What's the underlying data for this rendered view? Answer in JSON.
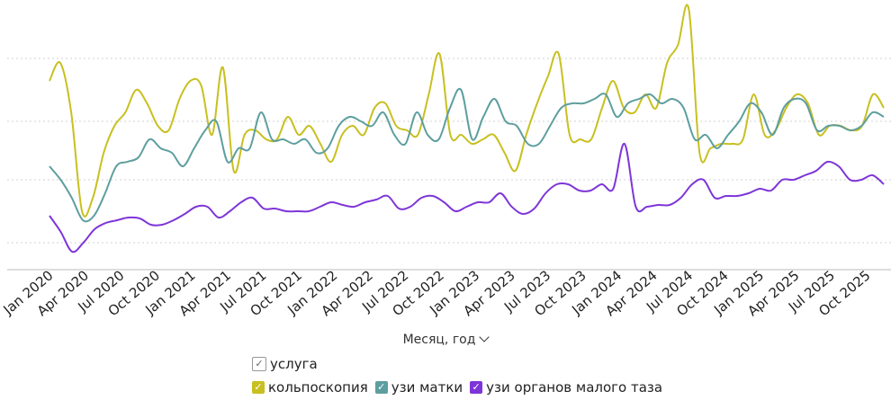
{
  "chart_data": {
    "type": "line",
    "title": "",
    "xlabel": "Месяц, год",
    "ylabel": "",
    "grid": true,
    "ylim": [
      0,
      300
    ],
    "ygrid": [
      30,
      100,
      165,
      235
    ],
    "x_tick_labels": [
      "Jan 2020",
      "Apr 2020",
      "Jul 2020",
      "Oct 2020",
      "Jan 2021",
      "Apr 2021",
      "Jul 2021",
      "Oct 2021",
      "Jan 2022",
      "Apr 2022",
      "Jul 2022",
      "Oct 2022",
      "Jan 2023",
      "Apr 2023",
      "Jul 2023",
      "Oct 2023",
      "Jan 2024",
      "Apr 2024",
      "Jul 2024",
      "Oct 2024",
      "Jan 2025",
      "Apr 2025",
      "Jul 2025",
      "Oct 2025"
    ],
    "series": [
      {
        "name": "кольпоскопия",
        "color": "#c8c020",
        "values": [
          210,
          230,
          175,
          65,
          80,
          130,
          160,
          175,
          200,
          185,
          160,
          155,
          190,
          210,
          205,
          150,
          225,
          110,
          150,
          155,
          145,
          145,
          170,
          150,
          160,
          140,
          120,
          150,
          160,
          150,
          180,
          185,
          160,
          155,
          150,
          195,
          240,
          150,
          150,
          140,
          145,
          150,
          130,
          110,
          150,
          185,
          215,
          240,
          150,
          145,
          145,
          180,
          210,
          180,
          175,
          195,
          180,
          230,
          250,
          290,
          130,
          135,
          140,
          140,
          145,
          195,
          150,
          155,
          180,
          195,
          185,
          150,
          160,
          160,
          155,
          160,
          195,
          180
        ]
      },
      {
        "name": "узи матки",
        "color": "#5e9e9e",
        "values": [
          115,
          100,
          80,
          55,
          60,
          85,
          115,
          120,
          125,
          145,
          135,
          130,
          115,
          135,
          155,
          165,
          120,
          135,
          135,
          175,
          145,
          145,
          140,
          145,
          130,
          135,
          160,
          170,
          165,
          160,
          175,
          150,
          140,
          175,
          150,
          145,
          180,
          200,
          145,
          170,
          190,
          165,
          160,
          140,
          140,
          160,
          180,
          185,
          185,
          190,
          195,
          170,
          185,
          190,
          195,
          185,
          190,
          180,
          145,
          150,
          135,
          150,
          165,
          185,
          175,
          150,
          180,
          190,
          185,
          155,
          160,
          160,
          155,
          160,
          175,
          170
        ]
      },
      {
        "name": "узи органов малого таза",
        "color": "#7e35d8",
        "values": [
          60,
          42,
          20,
          30,
          45,
          52,
          55,
          58,
          57,
          50,
          50,
          55,
          62,
          70,
          70,
          58,
          65,
          75,
          80,
          68,
          68,
          65,
          65,
          65,
          70,
          75,
          72,
          70,
          75,
          78,
          82,
          68,
          70,
          80,
          82,
          75,
          65,
          70,
          75,
          75,
          85,
          70,
          62,
          68,
          85,
          95,
          95,
          88,
          88,
          95,
          90,
          140,
          70,
          70,
          72,
          72,
          80,
          95,
          100,
          80,
          82,
          82,
          85,
          90,
          88,
          100,
          100,
          105,
          110,
          120,
          115,
          100,
          100,
          105,
          95
        ]
      }
    ]
  },
  "legend": {
    "title": "услуга",
    "items": [
      "кольпоскопия",
      "узи матки",
      "узи органов малого таза"
    ]
  }
}
